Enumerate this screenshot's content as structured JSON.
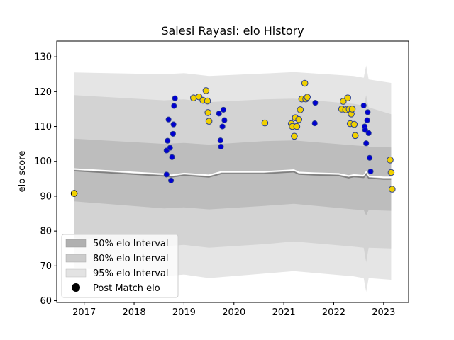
{
  "chart_data": {
    "type": "area",
    "title": "Salesi Rayasi: elo History",
    "xlabel": "",
    "ylabel": "elo score",
    "xlim": [
      2016.45,
      2023.5
    ],
    "ylim": [
      59.5,
      134.5
    ],
    "x_ticks": [
      {
        "value": 2017,
        "label": "2017"
      },
      {
        "value": 2018,
        "label": "2018"
      },
      {
        "value": 2019,
        "label": "2019"
      },
      {
        "value": 2020,
        "label": "2020"
      },
      {
        "value": 2021,
        "label": "2021"
      },
      {
        "value": 2022,
        "label": "2022"
      },
      {
        "value": 2023,
        "label": "2023"
      }
    ],
    "y_ticks": [
      {
        "value": 60,
        "label": "60"
      },
      {
        "value": 70,
        "label": "70"
      },
      {
        "value": 80,
        "label": "80"
      },
      {
        "value": 90,
        "label": "90"
      },
      {
        "value": 100,
        "label": "100"
      },
      {
        "value": 110,
        "label": "110"
      },
      {
        "value": 120,
        "label": "120"
      },
      {
        "value": 130,
        "label": "130"
      }
    ],
    "grid": false,
    "legend": {
      "placement": "lower-left",
      "entries": [
        {
          "label": "50% elo Interval",
          "color": "#b0b0b0"
        },
        {
          "label": "80% elo Interval",
          "color": "#cbcbcb"
        },
        {
          "label": "95% elo Interval",
          "color": "#e3e3e3"
        },
        {
          "label": "Post Match elo",
          "color": "#000000"
        }
      ]
    },
    "colors": {
      "band50": "#bdbdbd",
      "band80": "#d3d3d3",
      "band95": "#e5e5e5",
      "mean_line": "#808080",
      "white_line": "#ffffff",
      "point_gold": "#f0d000",
      "point_blue": "#0000d0",
      "point_edge": "#2a3f8f"
    },
    "mean_series": {
      "x": [
        2016.8,
        2018.6,
        2018.75,
        2019.0,
        2019.5,
        2019.75,
        2020.6,
        2021.1,
        2021.2,
        2021.3,
        2021.6,
        2022.1,
        2022.3,
        2022.4,
        2022.6,
        2022.65,
        2022.7,
        2023.0,
        2023.15
      ],
      "y": [
        97.3,
        95.8,
        95.5,
        96.0,
        95.5,
        96.5,
        96.5,
        96.9,
        97.0,
        96.3,
        96.1,
        95.9,
        95.3,
        95.6,
        95.4,
        96.4,
        95.2,
        94.9,
        94.9
      ]
    },
    "band50": {
      "x": [
        2016.8,
        2018.6,
        2019.0,
        2019.5,
        2020.6,
        2021.2,
        2022.4,
        2022.6,
        2022.65,
        2022.7,
        2023.15
      ],
      "lower": [
        88.5,
        86.5,
        86.8,
        86.2,
        87.2,
        87.8,
        86.2,
        86.0,
        84.5,
        86.0,
        85.8
      ],
      "upper": [
        106.5,
        105.0,
        105.3,
        104.8,
        105.8,
        106.0,
        104.6,
        104.4,
        106.0,
        104.2,
        104.0
      ]
    },
    "band80": {
      "x": [
        2016.8,
        2018.6,
        2019.0,
        2019.5,
        2020.6,
        2021.2,
        2022.4,
        2022.6,
        2022.65,
        2022.7,
        2023.15
      ],
      "lower": [
        78.0,
        75.6,
        76.0,
        75.2,
        76.2,
        77.0,
        75.5,
        75.2,
        71.0,
        75.2,
        75.0
      ],
      "upper": [
        119.0,
        117.5,
        117.8,
        117.0,
        117.8,
        118.0,
        116.5,
        116.0,
        119.0,
        115.5,
        113.5
      ]
    },
    "band95": {
      "x": [
        2016.8,
        2018.6,
        2019.0,
        2019.5,
        2020.6,
        2021.2,
        2022.4,
        2022.6,
        2022.65,
        2022.7,
        2023.15
      ],
      "lower": [
        69.5,
        67.0,
        67.5,
        66.5,
        67.8,
        68.5,
        67.0,
        66.5,
        62.5,
        66.5,
        66.0
      ],
      "upper": [
        125.5,
        125.0,
        125.3,
        124.5,
        125.2,
        125.6,
        124.5,
        124.0,
        127.5,
        123.5,
        122.5
      ]
    },
    "points": [
      {
        "x": 2016.8,
        "y": 90.8,
        "color": "gold",
        "edge": "black"
      },
      {
        "x": 2018.65,
        "y": 96.2,
        "color": "blue"
      },
      {
        "x": 2018.65,
        "y": 103.1,
        "color": "blue"
      },
      {
        "x": 2018.67,
        "y": 105.9,
        "color": "blue"
      },
      {
        "x": 2018.69,
        "y": 112.0,
        "color": "blue"
      },
      {
        "x": 2018.72,
        "y": 103.9,
        "color": "blue"
      },
      {
        "x": 2018.74,
        "y": 94.5,
        "color": "blue"
      },
      {
        "x": 2018.76,
        "y": 101.2,
        "color": "blue"
      },
      {
        "x": 2018.78,
        "y": 107.9,
        "color": "blue"
      },
      {
        "x": 2018.79,
        "y": 110.6,
        "color": "blue"
      },
      {
        "x": 2018.8,
        "y": 115.9,
        "color": "blue"
      },
      {
        "x": 2018.82,
        "y": 118.1,
        "color": "blue"
      },
      {
        "x": 2019.19,
        "y": 118.2,
        "color": "gold"
      },
      {
        "x": 2019.3,
        "y": 118.5,
        "color": "gold"
      },
      {
        "x": 2019.38,
        "y": 117.5,
        "color": "gold"
      },
      {
        "x": 2019.44,
        "y": 120.3,
        "color": "gold"
      },
      {
        "x": 2019.47,
        "y": 117.3,
        "color": "gold"
      },
      {
        "x": 2019.48,
        "y": 114.0,
        "color": "gold"
      },
      {
        "x": 2019.5,
        "y": 111.5,
        "color": "gold"
      },
      {
        "x": 2019.7,
        "y": 113.7,
        "color": "blue"
      },
      {
        "x": 2019.73,
        "y": 106.0,
        "color": "blue"
      },
      {
        "x": 2019.74,
        "y": 104.2,
        "color": "blue"
      },
      {
        "x": 2019.77,
        "y": 110.0,
        "color": "blue"
      },
      {
        "x": 2019.79,
        "y": 114.8,
        "color": "blue"
      },
      {
        "x": 2019.81,
        "y": 111.8,
        "color": "blue"
      },
      {
        "x": 2020.62,
        "y": 111.0,
        "color": "gold"
      },
      {
        "x": 2021.15,
        "y": 110.8,
        "color": "gold"
      },
      {
        "x": 2021.17,
        "y": 110.0,
        "color": "gold"
      },
      {
        "x": 2021.21,
        "y": 107.2,
        "color": "gold"
      },
      {
        "x": 2021.23,
        "y": 112.5,
        "color": "gold"
      },
      {
        "x": 2021.26,
        "y": 110.0,
        "color": "gold"
      },
      {
        "x": 2021.3,
        "y": 112.0,
        "color": "gold"
      },
      {
        "x": 2021.33,
        "y": 114.8,
        "color": "gold"
      },
      {
        "x": 2021.36,
        "y": 117.9,
        "color": "gold"
      },
      {
        "x": 2021.42,
        "y": 122.4,
        "color": "gold"
      },
      {
        "x": 2021.44,
        "y": 117.9,
        "color": "gold"
      },
      {
        "x": 2021.47,
        "y": 118.4,
        "color": "gold"
      },
      {
        "x": 2021.62,
        "y": 110.9,
        "color": "blue"
      },
      {
        "x": 2021.63,
        "y": 116.8,
        "color": "blue"
      },
      {
        "x": 2022.16,
        "y": 115.0,
        "color": "gold"
      },
      {
        "x": 2022.19,
        "y": 117.2,
        "color": "gold"
      },
      {
        "x": 2022.24,
        "y": 114.8,
        "color": "gold"
      },
      {
        "x": 2022.28,
        "y": 118.2,
        "color": "gold"
      },
      {
        "x": 2022.31,
        "y": 115.0,
        "color": "gold"
      },
      {
        "x": 2022.33,
        "y": 110.8,
        "color": "gold"
      },
      {
        "x": 2022.35,
        "y": 113.6,
        "color": "gold"
      },
      {
        "x": 2022.37,
        "y": 115.0,
        "color": "gold"
      },
      {
        "x": 2022.41,
        "y": 110.6,
        "color": "gold"
      },
      {
        "x": 2022.43,
        "y": 107.4,
        "color": "gold"
      },
      {
        "x": 2022.6,
        "y": 116.0,
        "color": "blue"
      },
      {
        "x": 2022.62,
        "y": 110.0,
        "color": "blue"
      },
      {
        "x": 2022.63,
        "y": 109.0,
        "color": "blue"
      },
      {
        "x": 2022.65,
        "y": 105.2,
        "color": "blue"
      },
      {
        "x": 2022.67,
        "y": 111.8,
        "color": "blue"
      },
      {
        "x": 2022.68,
        "y": 114.1,
        "color": "blue"
      },
      {
        "x": 2022.7,
        "y": 108.1,
        "color": "blue"
      },
      {
        "x": 2022.72,
        "y": 101.0,
        "color": "blue"
      },
      {
        "x": 2022.74,
        "y": 97.1,
        "color": "blue"
      },
      {
        "x": 2023.13,
        "y": 100.4,
        "color": "gold"
      },
      {
        "x": 2023.15,
        "y": 96.8,
        "color": "gold"
      },
      {
        "x": 2023.17,
        "y": 92.0,
        "color": "gold"
      }
    ]
  }
}
